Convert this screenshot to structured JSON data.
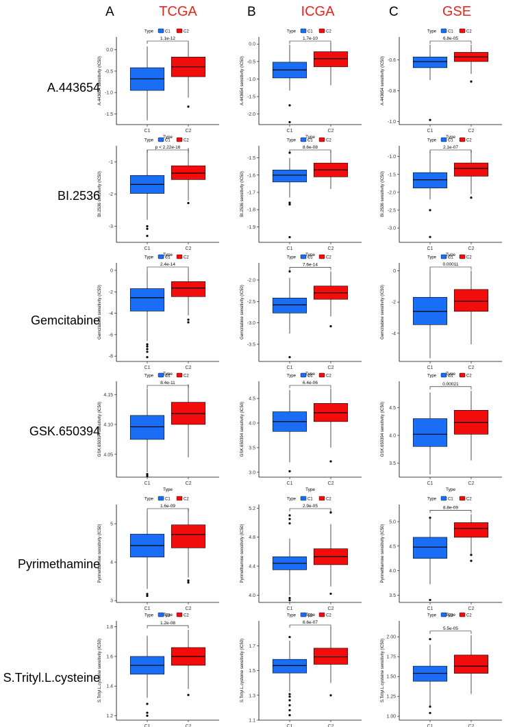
{
  "figure": {
    "columns": [
      {
        "letter": "A",
        "cohort": "TCGA"
      },
      {
        "letter": "B",
        "cohort": "ICGA"
      },
      {
        "letter": "C",
        "cohort": "GSE"
      }
    ],
    "rows": [
      "A.443654",
      "BI.2536",
      "Gemcitabine",
      "GSK.650394",
      "Pyrimethamine",
      "S.Trityl.L.cysteine"
    ],
    "legend": {
      "title": "Type",
      "items": [
        "C1",
        "C2"
      ]
    },
    "xlabel": "Type",
    "colors": {
      "C1": "#1a6ef5",
      "C2": "#f20c0c",
      "title": "#e8241c"
    }
  },
  "chart_data": [
    {
      "type": "box",
      "row": 0,
      "col": 0,
      "ylabel": "A.443654 sensitivity (IC50)",
      "pvalue": "1.1e-12",
      "ylim": [
        -1.75,
        0.3
      ],
      "yticks": [
        {
          "v": 0,
          "l": "0.0"
        },
        {
          "v": -0.5,
          "l": "-0.5"
        },
        {
          "v": -1,
          "l": "-1.0"
        },
        {
          "v": -1.5,
          "l": "-1.5"
        }
      ],
      "categories": [
        "C1",
        "C2"
      ],
      "boxes": [
        {
          "min": -1.65,
          "q1": -0.95,
          "median": -0.68,
          "q3": -0.42,
          "max": 0.08,
          "outliers": []
        },
        {
          "min": -1.12,
          "q1": -0.63,
          "median": -0.4,
          "q3": -0.17,
          "max": 0.15,
          "outliers": [
            -1.33
          ]
        }
      ]
    },
    {
      "type": "box",
      "row": 0,
      "col": 1,
      "ylabel": "A.443654 sensitivity (IC50)",
      "pvalue": "1.7e-10",
      "ylim": [
        -2.3,
        0.2
      ],
      "yticks": [
        {
          "v": 0,
          "l": "0.0"
        },
        {
          "v": -0.5,
          "l": "-0.5"
        },
        {
          "v": -1,
          "l": "-1.0"
        },
        {
          "v": -1.5,
          "l": "-1.5"
        },
        {
          "v": -2,
          "l": "-2.0"
        }
      ],
      "categories": [
        "C1",
        "C2"
      ],
      "boxes": [
        {
          "min": -1.33,
          "q1": -0.97,
          "median": -0.74,
          "q3": -0.52,
          "max": -0.02,
          "outliers": [
            -1.75,
            -2.23
          ]
        },
        {
          "min": -1.18,
          "q1": -0.65,
          "median": -0.42,
          "q3": -0.22,
          "max": 0.02,
          "outliers": []
        }
      ]
    },
    {
      "type": "box",
      "row": 0,
      "col": 2,
      "ylabel": "A.443654 sensitivity (IC50)",
      "pvalue": "6.8e-05",
      "ylim": [
        -1.02,
        -0.45
      ],
      "yticks": [
        {
          "v": -0.6,
          "l": "-0.6"
        },
        {
          "v": -0.8,
          "l": "-0.8"
        },
        {
          "v": -1,
          "l": "-1.0"
        }
      ],
      "categories": [
        "C1",
        "C2"
      ],
      "boxes": [
        {
          "min": -0.73,
          "q1": -0.65,
          "median": -0.61,
          "q3": -0.58,
          "max": -0.5,
          "outliers": [
            -0.99
          ]
        },
        {
          "min": -0.69,
          "q1": -0.61,
          "median": -0.58,
          "q3": -0.55,
          "max": -0.5,
          "outliers": [
            -0.74
          ]
        }
      ]
    },
    {
      "type": "box",
      "row": 1,
      "col": 0,
      "ylabel": "BI.2536 sensitivity (IC50)",
      "pvalue": "p < 2.22e-16",
      "ylim": [
        -3.5,
        -0.5
      ],
      "yticks": [
        {
          "v": -1,
          "l": "-1"
        },
        {
          "v": -2,
          "l": "-2"
        },
        {
          "v": -3,
          "l": "-3"
        }
      ],
      "categories": [
        "C1",
        "C2"
      ],
      "boxes": [
        {
          "min": -2.8,
          "q1": -1.98,
          "median": -1.7,
          "q3": -1.42,
          "max": -0.63,
          "outliers": [
            -3.0,
            -3.08,
            -3.3
          ]
        },
        {
          "min": -2.2,
          "q1": -1.55,
          "median": -1.35,
          "q3": -1.12,
          "max": -0.57,
          "outliers": [
            -2.28
          ]
        }
      ]
    },
    {
      "type": "box",
      "row": 1,
      "col": 1,
      "ylabel": "BI.2536 sensitivity (IC50)",
      "pvalue": "8.6e-08",
      "ylim": [
        -1.99,
        -1.43
      ],
      "yticks": [
        {
          "v": -1.5,
          "l": "-1.5"
        },
        {
          "v": -1.6,
          "l": "-1.6"
        },
        {
          "v": -1.7,
          "l": "-1.7"
        },
        {
          "v": -1.8,
          "l": "-1.8"
        },
        {
          "v": -1.9,
          "l": "-1.9"
        }
      ],
      "categories": [
        "C1",
        "C2"
      ],
      "boxes": [
        {
          "min": -1.73,
          "q1": -1.64,
          "median": -1.6,
          "q3": -1.57,
          "max": -1.5,
          "outliers": [
            -1.47,
            -1.76,
            -1.77,
            -1.96
          ]
        },
        {
          "min": -1.68,
          "q1": -1.61,
          "median": -1.57,
          "q3": -1.53,
          "max": -1.46,
          "outliers": []
        }
      ]
    },
    {
      "type": "box",
      "row": 1,
      "col": 2,
      "ylabel": "BI.2536 sensitivity (IC50)",
      "pvalue": "2.1e-07",
      "ylim": [
        -3.4,
        -0.7
      ],
      "yticks": [
        {
          "v": -1,
          "l": "-1.0"
        },
        {
          "v": -1.5,
          "l": "-1.5"
        },
        {
          "v": -2,
          "l": "-2.0"
        },
        {
          "v": -2.5,
          "l": "-2.5"
        },
        {
          "v": -3,
          "l": "-3.0"
        }
      ],
      "categories": [
        "C1",
        "C2"
      ],
      "boxes": [
        {
          "min": -2.2,
          "q1": -1.88,
          "median": -1.65,
          "q3": -1.45,
          "max": -0.85,
          "outliers": [
            -2.5,
            -3.25
          ]
        },
        {
          "min": -2.05,
          "q1": -1.55,
          "median": -1.33,
          "q3": -1.18,
          "max": -0.82,
          "outliers": [
            -2.15
          ]
        }
      ]
    },
    {
      "type": "box",
      "row": 2,
      "col": 0,
      "ylabel": "Gemcitabine sensitivity (IC50)",
      "pvalue": "2.4e-14",
      "ylim": [
        -8.5,
        0.7
      ],
      "yticks": [
        {
          "v": 0,
          "l": "0"
        },
        {
          "v": -2,
          "l": "-2"
        },
        {
          "v": -4,
          "l": "-4"
        },
        {
          "v": -6,
          "l": "-6"
        },
        {
          "v": -8,
          "l": "-8"
        }
      ],
      "categories": [
        "C1",
        "C2"
      ],
      "boxes": [
        {
          "min": -6.6,
          "q1": -3.8,
          "median": -2.55,
          "q3": -1.7,
          "max": 0.05,
          "outliers": [
            -6.9,
            -7.1,
            -7.35,
            -7.6,
            -8.1
          ]
        },
        {
          "min": -4.2,
          "q1": -2.45,
          "median": -1.65,
          "q3": -1.05,
          "max": 0.1,
          "outliers": [
            -4.6,
            -4.85
          ]
        }
      ]
    },
    {
      "type": "box",
      "row": 2,
      "col": 1,
      "ylabel": "Gemcitabine sensitivity (IC50)",
      "pvalue": "7.6e-14",
      "ylim": [
        -3.9,
        -1.6
      ],
      "yticks": [
        {
          "v": -2,
          "l": "-2.0"
        },
        {
          "v": -2.5,
          "l": "-2.5"
        },
        {
          "v": -3,
          "l": "-3.0"
        },
        {
          "v": -3.5,
          "l": "-3.5"
        }
      ],
      "categories": [
        "C1",
        "C2"
      ],
      "boxes": [
        {
          "min": -3.25,
          "q1": -2.77,
          "median": -2.58,
          "q3": -2.42,
          "max": -1.95,
          "outliers": [
            -1.8,
            -3.8
          ]
        },
        {
          "min": -2.85,
          "q1": -2.45,
          "median": -2.3,
          "q3": -2.14,
          "max": -1.8,
          "outliers": [
            -3.08
          ]
        }
      ]
    },
    {
      "type": "box",
      "row": 2,
      "col": 2,
      "ylabel": "Gemcitabine sensitivity (IC50)",
      "pvalue": "0.00011",
      "ylim": [
        -5.8,
        0.5
      ],
      "yticks": [
        {
          "v": 0,
          "l": "0"
        },
        {
          "v": -2,
          "l": "-2"
        },
        {
          "v": -4,
          "l": "-4"
        }
      ],
      "categories": [
        "C1",
        "C2"
      ],
      "boxes": [
        {
          "min": -5.6,
          "q1": -3.45,
          "median": -2.6,
          "q3": -1.7,
          "max": 0.05,
          "outliers": []
        },
        {
          "min": -4.7,
          "q1": -2.6,
          "median": -1.95,
          "q3": -1.2,
          "max": 0.0,
          "outliers": []
        }
      ]
    },
    {
      "type": "box",
      "row": 3,
      "col": 0,
      "ylabel": "GSK.650394 sensitivity (IC50)",
      "pvalue": "8.4e-11",
      "ylim": [
        4.012,
        4.172
      ],
      "yticks": [
        {
          "v": 4.15,
          "l": "4.15"
        },
        {
          "v": 4.1,
          "l": "4.10"
        },
        {
          "v": 4.05,
          "l": "4.05"
        }
      ],
      "categories": [
        "C1",
        "C2"
      ],
      "boxes": [
        {
          "min": 4.02,
          "q1": 4.075,
          "median": 4.096,
          "q3": 4.115,
          "max": 4.16,
          "outliers": [
            4.017,
            4.014
          ]
        },
        {
          "min": 4.045,
          "q1": 4.1,
          "median": 4.118,
          "q3": 4.137,
          "max": 4.167,
          "outliers": []
        }
      ]
    },
    {
      "type": "box",
      "row": 3,
      "col": 1,
      "ylabel": "GSK.650394 sensitivity (IC50)",
      "pvalue": "6.4e-06",
      "ylim": [
        2.9,
        4.85
      ],
      "yticks": [
        {
          "v": 4.5,
          "l": "4.5"
        },
        {
          "v": 4,
          "l": "4.0"
        },
        {
          "v": 3.5,
          "l": "3.5"
        },
        {
          "v": 3,
          "l": "3.0"
        }
      ],
      "categories": [
        "C1",
        "C2"
      ],
      "boxes": [
        {
          "min": 3.2,
          "q1": 3.83,
          "median": 4.03,
          "q3": 4.23,
          "max": 4.67,
          "outliers": [
            3.02
          ]
        },
        {
          "min": 3.5,
          "q1": 4.03,
          "median": 4.21,
          "q3": 4.4,
          "max": 4.7,
          "outliers": [
            3.22
          ]
        }
      ]
    },
    {
      "type": "box",
      "row": 3,
      "col": 2,
      "ylabel": "GSK.650394 sensitivity (IC50)",
      "pvalue": "0.00021",
      "ylim": [
        3.25,
        4.97
      ],
      "yticks": [
        {
          "v": 4.5,
          "l": "4.5"
        },
        {
          "v": 4,
          "l": "4.0"
        },
        {
          "v": 3.5,
          "l": "3.5"
        }
      ],
      "categories": [
        "C1",
        "C2"
      ],
      "boxes": [
        {
          "min": 3.3,
          "q1": 3.8,
          "median": 4.02,
          "q3": 4.3,
          "max": 4.77,
          "outliers": []
        },
        {
          "min": 3.55,
          "q1": 4.02,
          "median": 4.23,
          "q3": 4.45,
          "max": 4.8,
          "outliers": []
        }
      ]
    },
    {
      "type": "box",
      "row": 4,
      "col": 0,
      "ylabel": "Pyrimethamine sensitivity (IC50)",
      "pvalue": "1.6e-09",
      "ylim": [
        2.95,
        5.5
      ],
      "yticks": [
        {
          "v": 5,
          "l": "5"
        },
        {
          "v": 4,
          "l": "4"
        },
        {
          "v": 3,
          "l": "3"
        }
      ],
      "categories": [
        "C1",
        "C2"
      ],
      "boxes": [
        {
          "min": 3.3,
          "q1": 4.13,
          "median": 4.43,
          "q3": 4.73,
          "max": 5.33,
          "outliers": [
            3.17,
            3.12
          ]
        },
        {
          "min": 3.6,
          "q1": 4.37,
          "median": 4.72,
          "q3": 4.97,
          "max": 5.4,
          "outliers": [
            3.52,
            3.47
          ]
        }
      ]
    },
    {
      "type": "box",
      "row": 4,
      "col": 1,
      "ylabel": "Pyrimethamine sensitivity (IC50)",
      "pvalue": "2.9e-05",
      "ylim": [
        3.9,
        5.25
      ],
      "yticks": [
        {
          "v": 5.2,
          "l": "5.2"
        },
        {
          "v": 4.8,
          "l": "4.8"
        },
        {
          "v": 4.4,
          "l": "4.4"
        },
        {
          "v": 4,
          "l": "4.0"
        }
      ],
      "categories": [
        "C1",
        "C2"
      ],
      "boxes": [
        {
          "min": 4.0,
          "q1": 4.35,
          "median": 4.44,
          "q3": 4.53,
          "max": 4.78,
          "outliers": [
            5.1,
            5.05,
            4.99,
            3.96,
            3.93
          ]
        },
        {
          "min": 4.12,
          "q1": 4.42,
          "median": 4.53,
          "q3": 4.64,
          "max": 4.98,
          "outliers": [
            5.14,
            4.02
          ]
        }
      ]
    },
    {
      "type": "box",
      "row": 4,
      "col": 2,
      "ylabel": "Pyrimethamine sensitivity (IC50)",
      "pvalue": "8.8e-09",
      "ylim": [
        3.35,
        5.35
      ],
      "yticks": [
        {
          "v": 5,
          "l": "5.0"
        },
        {
          "v": 4.5,
          "l": "4.5"
        },
        {
          "v": 4,
          "l": "4.0"
        },
        {
          "v": 3.5,
          "l": "3.5"
        }
      ],
      "categories": [
        "C1",
        "C2"
      ],
      "boxes": [
        {
          "min": 3.72,
          "q1": 4.25,
          "median": 4.48,
          "q3": 4.68,
          "max": 5.1,
          "outliers": [
            5.08,
            3.4
          ]
        },
        {
          "min": 4.3,
          "q1": 4.68,
          "median": 4.86,
          "q3": 4.98,
          "max": 5.15,
          "outliers": [
            4.32,
            4.2
          ]
        }
      ]
    },
    {
      "type": "box",
      "row": 5,
      "col": 0,
      "ylabel": "S.Trityl.L.cysteine sensitivity (IC50)",
      "pvalue": "1.2e-08",
      "ylim": [
        1.17,
        1.84
      ],
      "yticks": [
        {
          "v": 1.8,
          "l": "1.8"
        },
        {
          "v": 1.6,
          "l": "1.6"
        },
        {
          "v": 1.4,
          "l": "1.4"
        },
        {
          "v": 1.2,
          "l": "1.2"
        }
      ],
      "categories": [
        "C1",
        "C2"
      ],
      "boxes": [
        {
          "min": 1.32,
          "q1": 1.48,
          "median": 1.54,
          "q3": 1.6,
          "max": 1.74,
          "outliers": [
            1.28,
            1.22,
            1.2
          ]
        },
        {
          "min": 1.38,
          "q1": 1.54,
          "median": 1.6,
          "q3": 1.66,
          "max": 1.78,
          "outliers": [
            1.34
          ]
        }
      ]
    },
    {
      "type": "box",
      "row": 5,
      "col": 1,
      "ylabel": "S.Trityl.L.cysteine sensitivity (IC50)",
      "pvalue": "6.6e-07",
      "ylim": [
        1.1,
        1.9
      ],
      "yticks": [
        {
          "v": 1.7,
          "l": "1.7"
        },
        {
          "v": 1.5,
          "l": "1.5"
        },
        {
          "v": 1.3,
          "l": "1.3"
        },
        {
          "v": 1.1,
          "l": "1.1"
        }
      ],
      "categories": [
        "C1",
        "C2"
      ],
      "boxes": [
        {
          "min": 1.33,
          "q1": 1.48,
          "median": 1.54,
          "q3": 1.59,
          "max": 1.74,
          "outliers": [
            1.77,
            1.31,
            1.29,
            1.26,
            1.22,
            1.18,
            1.14
          ]
        },
        {
          "min": 1.4,
          "q1": 1.55,
          "median": 1.61,
          "q3": 1.68,
          "max": 1.85,
          "outliers": [
            1.3
          ]
        }
      ]
    },
    {
      "type": "box",
      "row": 5,
      "col": 2,
      "ylabel": "S.Trityl.L.cysteine sensitivity (IC50)",
      "pvalue": "5.5e-05",
      "ylim": [
        0.95,
        2.2
      ],
      "yticks": [
        {
          "v": 2,
          "l": "2.00"
        },
        {
          "v": 1.75,
          "l": "1.75"
        },
        {
          "v": 1.5,
          "l": "1.50"
        },
        {
          "v": 1.25,
          "l": "1.25"
        },
        {
          "v": 1,
          "l": "1.00"
        }
      ],
      "categories": [
        "C1",
        "C2"
      ],
      "boxes": [
        {
          "min": 1.12,
          "q1": 1.44,
          "median": 1.54,
          "q3": 1.63,
          "max": 1.9,
          "outliers": [
            1.97,
            1.12,
            1.04
          ]
        },
        {
          "min": 1.28,
          "q1": 1.54,
          "median": 1.63,
          "q3": 1.77,
          "max": 2.02,
          "outliers": []
        }
      ]
    }
  ]
}
